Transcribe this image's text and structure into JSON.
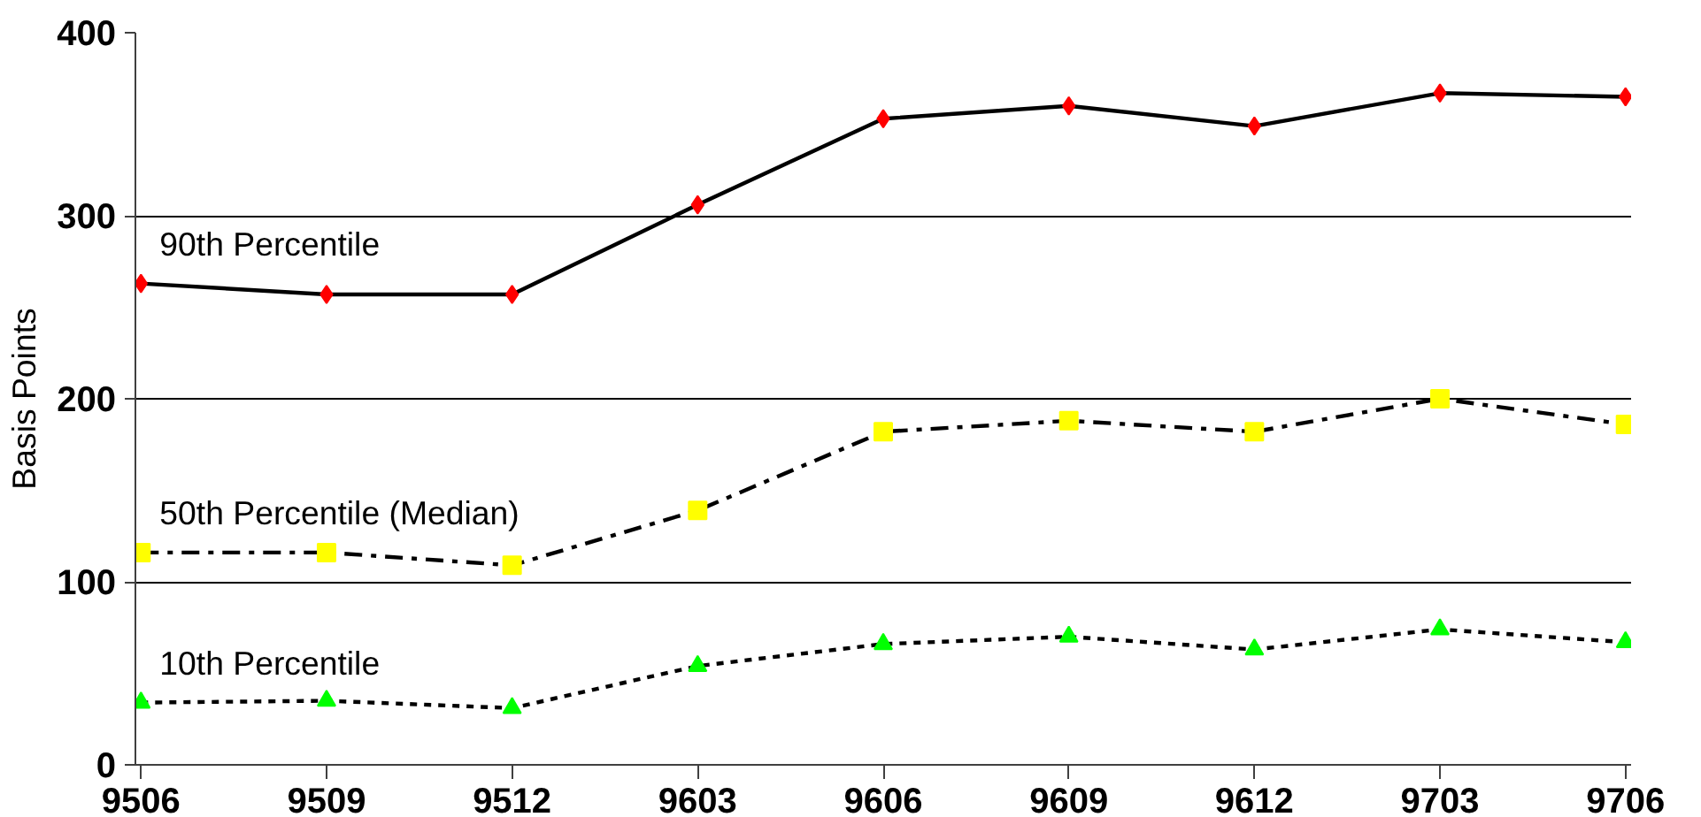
{
  "chart_data": {
    "type": "line",
    "ylabel": "Basis Points",
    "categories": [
      "9506",
      "9509",
      "9512",
      "9603",
      "9606",
      "9609",
      "9612",
      "9703",
      "9706"
    ],
    "series": [
      {
        "name": "90th Percentile",
        "color": "#ff0000",
        "marker": "diamond",
        "line_style": "solid",
        "values": [
          263,
          257,
          257,
          306,
          353,
          360,
          349,
          367,
          365
        ]
      },
      {
        "name": "50th Percentile (Median)",
        "color": "#ffff00",
        "marker": "square",
        "line_style": "dashdot",
        "values": [
          116,
          116,
          109,
          139,
          182,
          188,
          182,
          200,
          186
        ]
      },
      {
        "name": "10th Percentile",
        "color": "#00ff00",
        "marker": "triangle",
        "line_style": "dotted",
        "values": [
          34,
          35,
          31,
          54,
          66,
          70,
          63,
          74,
          67
        ]
      }
    ],
    "ylim": [
      0,
      400
    ],
    "yticks": [
      0,
      100,
      200,
      300,
      400
    ],
    "grid": "y"
  }
}
